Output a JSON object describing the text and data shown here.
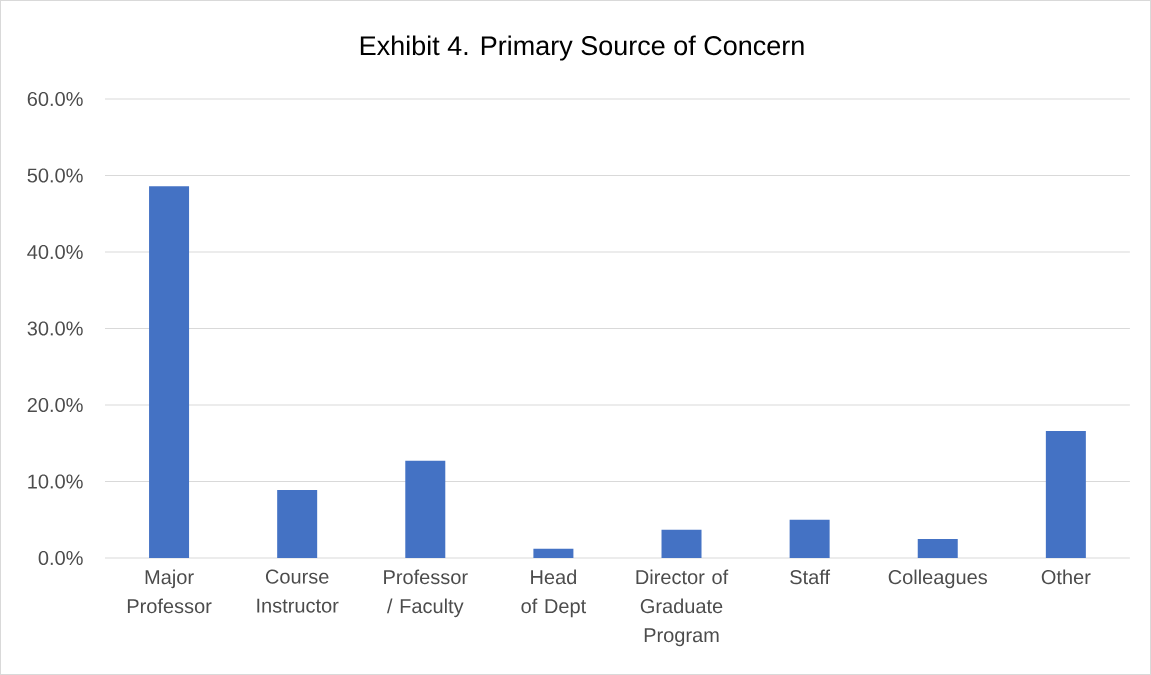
{
  "chart_data": {
    "type": "bar",
    "title": "Exhibit 4. Primary Source of Concern",
    "categories": [
      "Major Professor",
      "Course Instructor",
      "Professor / Faculty",
      "Head of Dept",
      "Director of Graduate Program",
      "Staff",
      "Colleagues",
      "Other"
    ],
    "values": [
      48.6,
      8.9,
      12.7,
      1.2,
      3.7,
      5.0,
      2.5,
      16.6
    ],
    "color": "#4472c4",
    "ylim": [
      0,
      60
    ],
    "yticks": [
      {
        "value": 0,
        "label": "0.0%"
      },
      {
        "value": 10,
        "label": "10.0%"
      },
      {
        "value": 20,
        "label": "20.0%"
      },
      {
        "value": 30,
        "label": "30.0%"
      },
      {
        "value": 40,
        "label": "40.0%"
      },
      {
        "value": 50,
        "label": "50.0%"
      },
      {
        "value": 60,
        "label": "60.0%"
      }
    ],
    "grid": "y"
  }
}
